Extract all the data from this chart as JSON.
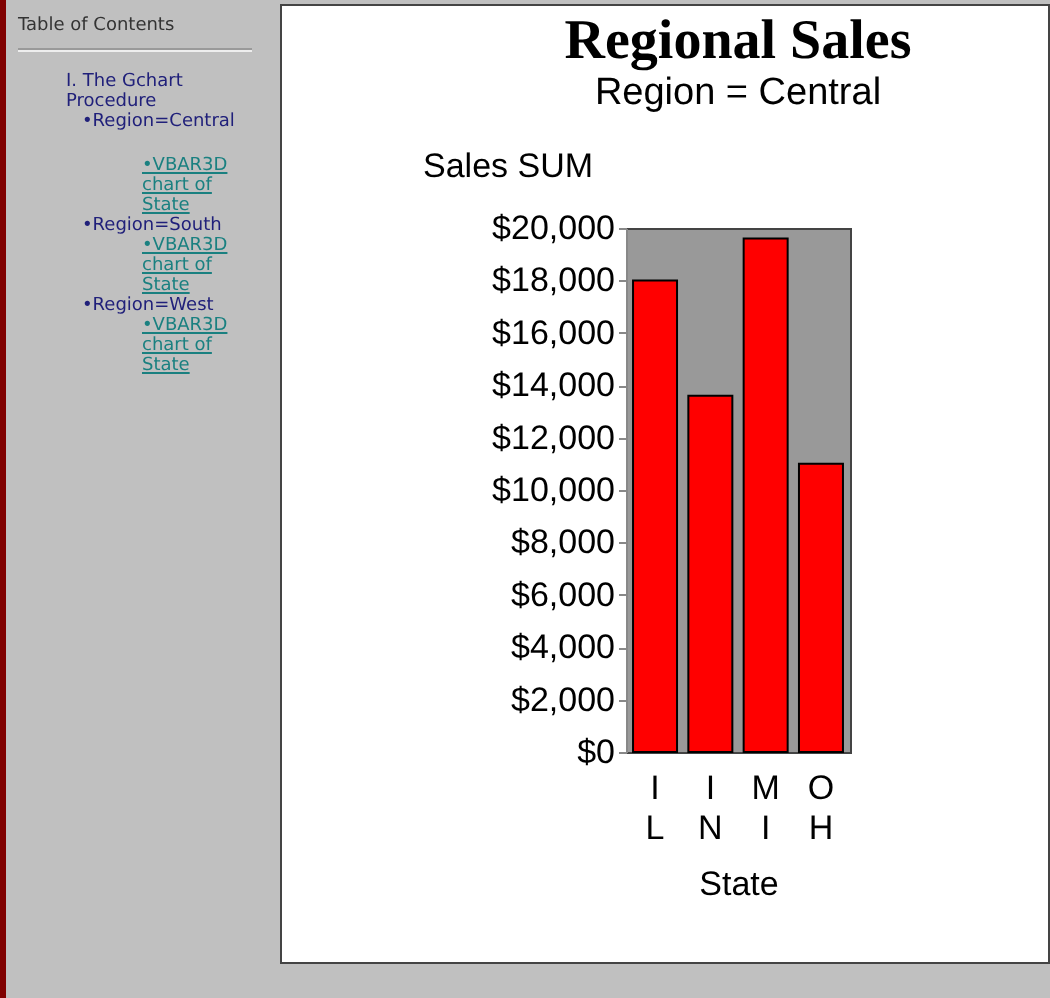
{
  "chart_data": {
    "type": "bar",
    "title": "Regional Sales",
    "subtitle": "Region = Central",
    "xlabel": "State",
    "ylabel": "Sales SUM",
    "categories": [
      "IL",
      "IN",
      "MI",
      "OH"
    ],
    "values": [
      18000,
      13600,
      19600,
      11000
    ],
    "color": "#ff0000",
    "ylim": [
      0,
      20000
    ],
    "yticks": [
      {
        "value": 0,
        "label": "$0"
      },
      {
        "value": 2000,
        "label": "$2,000"
      },
      {
        "value": 4000,
        "label": "$4,000"
      },
      {
        "value": 6000,
        "label": "$6,000"
      },
      {
        "value": 8000,
        "label": "$8,000"
      },
      {
        "value": 10000,
        "label": "$10,000"
      },
      {
        "value": 12000,
        "label": "$12,000"
      },
      {
        "value": 14000,
        "label": "$14,000"
      },
      {
        "value": 16000,
        "label": "$16,000"
      },
      {
        "value": 18000,
        "label": "$18,000"
      },
      {
        "value": 20000,
        "label": "$20,000"
      }
    ],
    "grid": false,
    "annotations": [
      "Table of Contents",
      "I. The Gchart Procedure",
      "•Region=Central",
      "•VBAR3D chart of State",
      "•Region=South",
      "•VBAR3D chart of State",
      "•Region=West",
      "•VBAR3D chart of State"
    ]
  }
}
